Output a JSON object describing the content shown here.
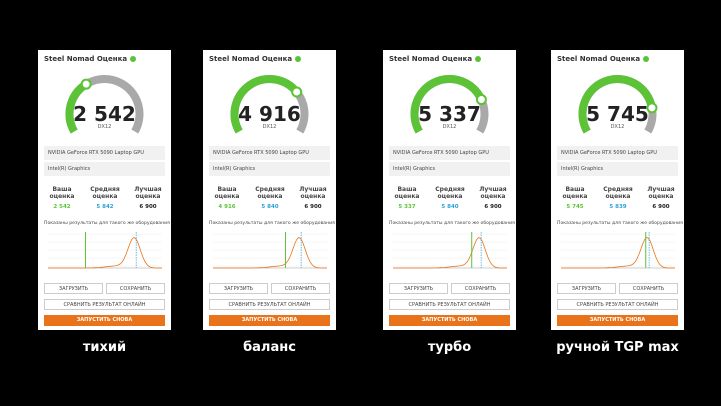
{
  "panels": [
    {
      "title": "Steel Nomad Оценка",
      "score": "2 542",
      "api": "DX12",
      "devices": [
        "NVIDIA GeForce RTX 5090 Laptop GPU",
        "Intel(R) Graphics"
      ],
      "stats": [
        {
          "label": "Ваша оценка",
          "value": "2 542"
        },
        {
          "label": "Средняя оценка",
          "value": "5 842"
        },
        {
          "label": "Лучшая оценка",
          "value": "6 900"
        }
      ],
      "note": "Показаны результаты для такого же оборудования",
      "buttons": [
        "ЗАГРУЗИТЬ",
        "СОХРАНИТЬ"
      ],
      "compare": "СРАВНИТЬ РЕЗУЛЬТАТ ОНЛАЙН",
      "run": "ЗАПУСТИТЬ СНОВА",
      "caption": "тихий"
    },
    {
      "title": "Steel Nomad Оценка",
      "score": "4 916",
      "api": "DX12",
      "devices": [
        "NVIDIA GeForce RTX 5090 Laptop GPU",
        "Intel(R) Graphics"
      ],
      "stats": [
        {
          "label": "Ваша оценка",
          "value": "4 916"
        },
        {
          "label": "Средняя оценка",
          "value": "5 840"
        },
        {
          "label": "Лучшая оценка",
          "value": "6 900"
        }
      ],
      "note": "Показаны результаты для такого же оборудования",
      "buttons": [
        "ЗАГРУЗИТЬ",
        "СОХРАНИТЬ"
      ],
      "compare": "СРАВНИТЬ РЕЗУЛЬТАТ ОНЛАЙН",
      "run": "ЗАПУСТИТЬ СНОВА",
      "caption": "баланс"
    },
    {
      "title": "Steel Nomad Оценка",
      "score": "5 337",
      "api": "DX12",
      "devices": [
        "NVIDIA GeForce RTX 5090 Laptop GPU",
        "Intel(R) Graphics"
      ],
      "stats": [
        {
          "label": "Ваша оценка",
          "value": "5 337"
        },
        {
          "label": "Средняя оценка",
          "value": "5 840"
        },
        {
          "label": "Лучшая оценка",
          "value": "6 900"
        }
      ],
      "note": "Показаны результаты для такого же оборудования",
      "buttons": [
        "ЗАГРУЗИТЬ",
        "СОХРАНИТЬ"
      ],
      "compare": "СРАВНИТЬ РЕЗУЛЬТАТ ОНЛАЙН",
      "run": "ЗАПУСТИТЬ СНОВА",
      "caption": "турбо"
    },
    {
      "title": "Steel Nomad Оценка",
      "score": "5 745",
      "api": "DX12",
      "devices": [
        "NVIDIA GeForce RTX 5090 Laptop GPU",
        "Intel(R) Graphics"
      ],
      "stats": [
        {
          "label": "Ваша оценка",
          "value": "5 745"
        },
        {
          "label": "Средняя оценка",
          "value": "5 839"
        },
        {
          "label": "Лучшая оценка",
          "value": "6 900"
        }
      ],
      "note": "Показаны результаты для такого же оборудования",
      "buttons": [
        "ЗАГРУЗИТЬ",
        "СОХРАНИТЬ"
      ],
      "compare": "СРАВНИТЬ РЕЗУЛЬТАТ ОНЛАЙН",
      "run": "ЗАПУСТИТЬ СНОВА",
      "caption": "ручной TGP max"
    }
  ]
}
